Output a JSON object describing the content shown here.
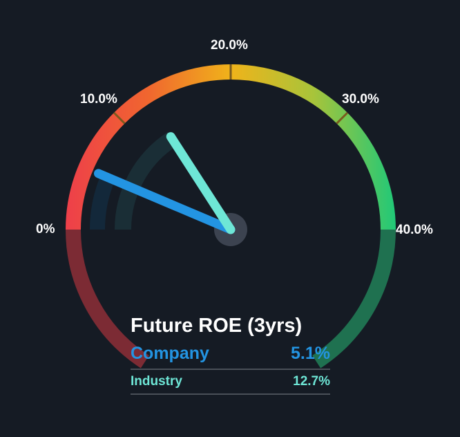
{
  "chart_data": {
    "type": "gauge",
    "title": "Future ROE (3yrs)",
    "range": [
      0,
      40
    ],
    "ticks": [
      "0%",
      "10.0%",
      "20.0%",
      "30.0%",
      "40.0%"
    ],
    "series": [
      {
        "name": "Company",
        "value": 5.1,
        "display": "5.1%",
        "color": "#2394e2"
      },
      {
        "name": "Industry",
        "value": 12.7,
        "display": "12.7%",
        "color": "#6ee6d6"
      }
    ]
  }
}
